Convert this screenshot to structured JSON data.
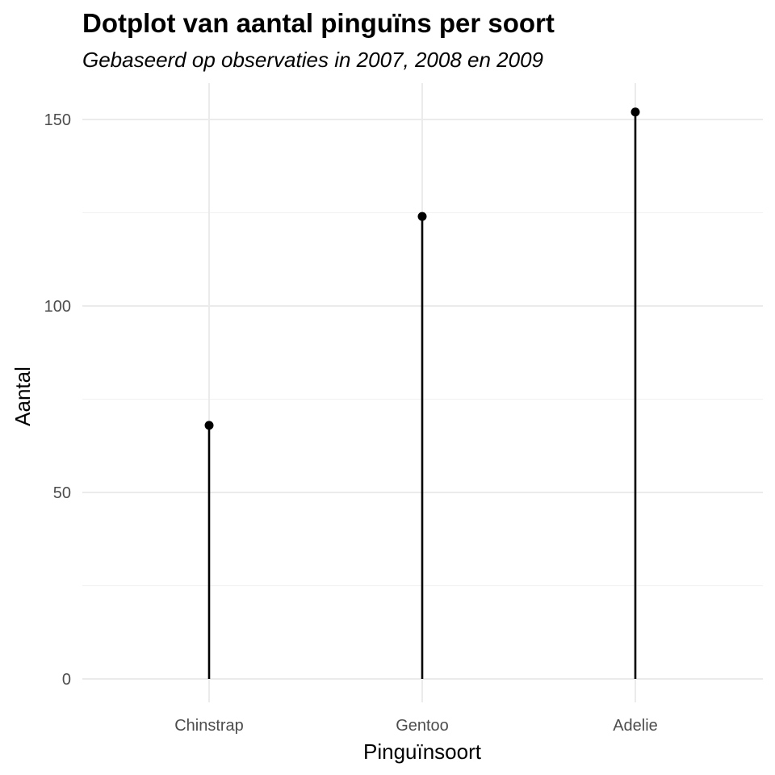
{
  "chart_data": {
    "type": "lollipop",
    "title": "Dotplot van aantal pinguïns per soort",
    "subtitle": "Gebaseerd op observaties in 2007, 2008 en 2009",
    "xlabel": "Pinguïnsoort",
    "ylabel": "Aantal",
    "categories": [
      "Chinstrap",
      "Gentoo",
      "Adelie"
    ],
    "values": [
      68,
      124,
      152
    ],
    "ylim": [
      0,
      152
    ],
    "yticks": [
      0,
      50,
      100,
      150
    ],
    "grid": true,
    "colors": {
      "marks": "#000000",
      "grid": "#ebebeb"
    }
  }
}
